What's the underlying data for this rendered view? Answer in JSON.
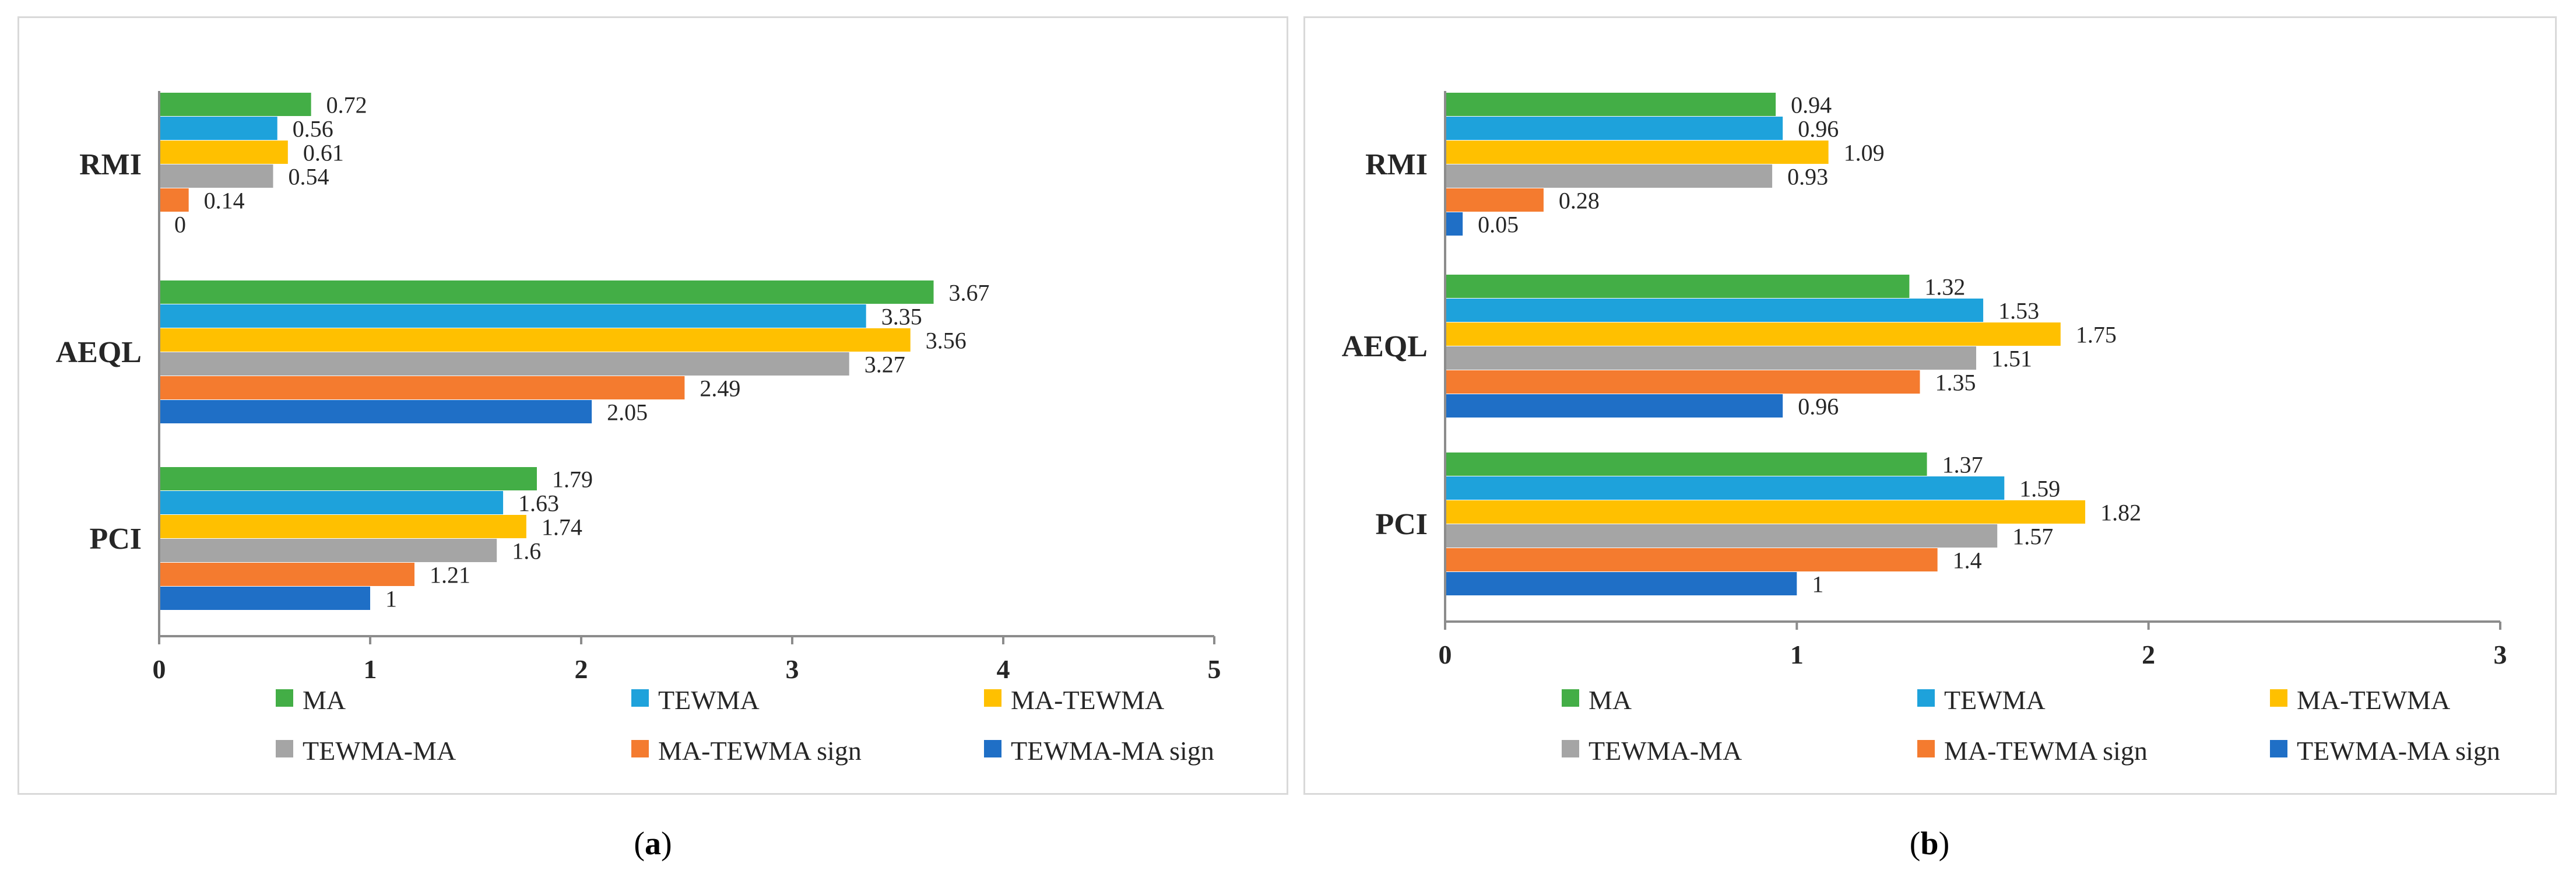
{
  "captions": [
    {
      "open": "(",
      "letter": "a",
      "close": ")"
    },
    {
      "open": "(",
      "letter": "b",
      "close": ")"
    }
  ],
  "chart_data": [
    {
      "type": "bar",
      "orientation": "horizontal",
      "categories": [
        "RMI",
        "AEQL",
        "PCI"
      ],
      "xlim": [
        0,
        5
      ],
      "xticks": [
        "0",
        "1",
        "2",
        "3",
        "4",
        "5"
      ],
      "grid": false,
      "legend_position": "bottom",
      "series": [
        {
          "name": "MA",
          "color": "#43ae46",
          "values": [
            0.72,
            3.67,
            1.79
          ],
          "labels": [
            "0.72",
            "3.67",
            "1.79"
          ]
        },
        {
          "name": "TEWMA",
          "color": "#1ea2db",
          "values": [
            0.56,
            3.35,
            1.63
          ],
          "labels": [
            "0.56",
            "3.35",
            "1.63"
          ]
        },
        {
          "name": "MA-TEWMA",
          "color": "#ffc000",
          "values": [
            0.61,
            3.56,
            1.74
          ],
          "labels": [
            "0.61",
            "3.56",
            "1.74"
          ]
        },
        {
          "name": "TEWMA-MA",
          "color": "#a5a5a5",
          "values": [
            0.54,
            3.27,
            1.6
          ],
          "labels": [
            "0.54",
            "3.27",
            "1.6"
          ]
        },
        {
          "name": "MA-TEWMA sign",
          "color": "#f47b2f",
          "values": [
            0.14,
            2.49,
            1.21
          ],
          "labels": [
            "0.14",
            "2.49",
            "1.21"
          ]
        },
        {
          "name": "TEWMA-MA sign",
          "color": "#1f6fc6",
          "values": [
            0,
            2.05,
            1
          ],
          "labels": [
            "0",
            "2.05",
            "1"
          ]
        }
      ]
    },
    {
      "type": "bar",
      "orientation": "horizontal",
      "categories": [
        "RMI",
        "AEQL",
        "PCI"
      ],
      "xlim": [
        0,
        3
      ],
      "xticks": [
        "0",
        "1",
        "2",
        "3"
      ],
      "grid": false,
      "legend_position": "bottom",
      "series": [
        {
          "name": "MA",
          "color": "#43ae46",
          "values": [
            0.94,
            1.32,
            1.37
          ],
          "labels": [
            "0.94",
            "1.32",
            "1.37"
          ]
        },
        {
          "name": "TEWMA",
          "color": "#1ea2db",
          "values": [
            0.96,
            1.53,
            1.59
          ],
          "labels": [
            "0.96",
            "1.53",
            "1.59"
          ]
        },
        {
          "name": "MA-TEWMA",
          "color": "#ffc000",
          "values": [
            1.09,
            1.75,
            1.82
          ],
          "labels": [
            "1.09",
            "1.75",
            "1.82"
          ]
        },
        {
          "name": "TEWMA-MA",
          "color": "#a5a5a5",
          "values": [
            0.93,
            1.51,
            1.57
          ],
          "labels": [
            "0.93",
            "1.51",
            "1.57"
          ]
        },
        {
          "name": "MA-TEWMA sign",
          "color": "#f47b2f",
          "values": [
            0.28,
            1.35,
            1.4
          ],
          "labels": [
            "0.28",
            "1.35",
            "1.4"
          ]
        },
        {
          "name": "TEWMA-MA sign",
          "color": "#1f6fc6",
          "values": [
            0.05,
            0.96,
            1
          ],
          "labels": [
            "0.05",
            "0.96",
            "1"
          ]
        }
      ]
    }
  ]
}
